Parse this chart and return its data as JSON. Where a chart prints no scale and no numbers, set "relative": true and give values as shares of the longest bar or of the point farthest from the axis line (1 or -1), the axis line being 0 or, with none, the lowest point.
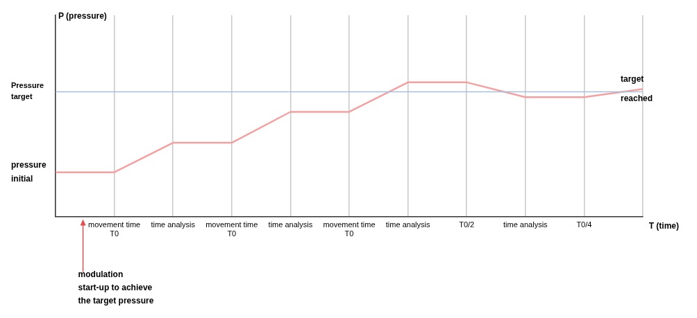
{
  "chart_data": {
    "type": "line",
    "relative": true,
    "xlabel": "T (time)",
    "categories": [
      null,
      "movement time T0",
      "time analysis",
      "movement time T0",
      "time analysis",
      "movement time T0",
      "time analysis",
      "T0/2",
      "time analysis",
      "T0/4",
      null
    ],
    "series": [
      {
        "color": "#f4a0a0",
        "values": [
          0.33,
          0.33,
          0.55,
          0.55,
          0.78,
          0.78,
          1,
          1,
          0.89,
          0.89,
          0.95
        ]
      }
    ],
    "ref_lines": [
      {
        "axis": "y",
        "value": 0.93,
        "label": "Pressure target",
        "color": "#a8c0e0"
      }
    ],
    "annotations": [
      "P (pressure)",
      "pressure initial",
      {
        "text": "target reached",
        "y": 0.95
      },
      "modulation start-up to achieve the target pressure"
    ],
    "grid": "x",
    "legend": false,
    "marker": "none",
    "line_style": "solid"
  }
}
